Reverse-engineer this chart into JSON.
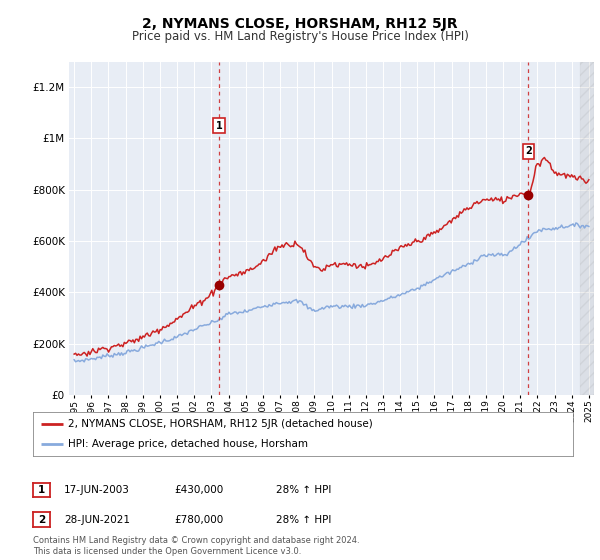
{
  "title": "2, NYMANS CLOSE, HORSHAM, RH12 5JR",
  "subtitle": "Price paid vs. HM Land Registry's House Price Index (HPI)",
  "legend_label_red": "2, NYMANS CLOSE, HORSHAM, RH12 5JR (detached house)",
  "legend_label_blue": "HPI: Average price, detached house, Horsham",
  "sale1_date": "17-JUN-2003",
  "sale1_price": "£430,000",
  "sale1_change": "28% ↑ HPI",
  "sale2_date": "28-JUN-2021",
  "sale2_price": "£780,000",
  "sale2_change": "28% ↑ HPI",
  "footer": "Contains HM Land Registry data © Crown copyright and database right 2024.\nThis data is licensed under the Open Government Licence v3.0.",
  "bg_color": "#ffffff",
  "plot_bg_color": "#e8edf5",
  "red_color": "#cc2222",
  "blue_color": "#88aadd",
  "dashed_red": "#cc2222",
  "sale_dot_color": "#990000",
  "ylim": [
    0,
    1300000
  ],
  "yticks": [
    0,
    200000,
    400000,
    600000,
    800000,
    1000000,
    1200000
  ],
  "xlim_start": 1994.7,
  "xlim_end": 2025.3,
  "sale1_year": 2003.46,
  "sale1_val": 430000,
  "sale2_year": 2021.48,
  "sale2_val": 780000
}
